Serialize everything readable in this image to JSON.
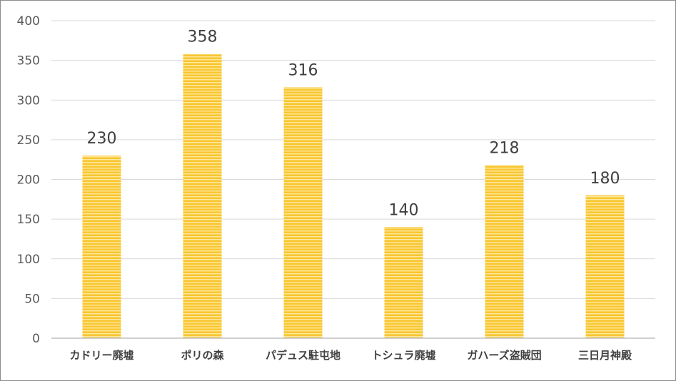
{
  "chart_data": {
    "type": "bar",
    "title": "",
    "xlabel": "",
    "ylabel": "",
    "categories": [
      "カドリー廃墟",
      "ポリの森",
      "パデュス駐屯地",
      "トシュラ廃墟",
      "ガハーズ盗賊団",
      "三日月神殿"
    ],
    "values": [
      230,
      358,
      316,
      140,
      218,
      180
    ],
    "ylim": [
      0,
      400
    ],
    "yticks": [
      0,
      50,
      100,
      150,
      200,
      250,
      300,
      350,
      400
    ],
    "grid": true,
    "legend": "none",
    "data_labels": true,
    "colors": {
      "bar": "#f8c630",
      "bar_stripe": "#ffe8a0",
      "grid": "#d9d9d9",
      "axis": "#bfbfbf"
    }
  }
}
